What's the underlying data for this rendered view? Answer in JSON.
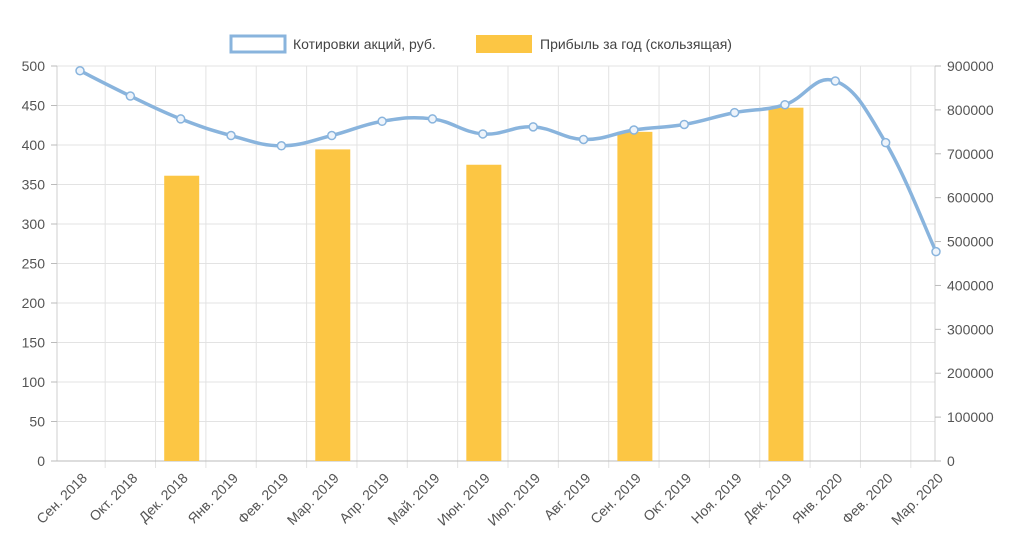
{
  "chart_data": {
    "type": "bar",
    "categories": [
      "Сен. 2018",
      "Окт. 2018",
      "Дек. 2018",
      "Янв. 2019",
      "Фев. 2019",
      "Мар. 2019",
      "Апр. 2019",
      "Май. 2019",
      "Июн. 2019",
      "Июл. 2019",
      "Авг. 2019",
      "Сен. 2019",
      "Окт. 2019",
      "Ноя. 2019",
      "Дек. 2019",
      "Янв. 2020",
      "Фев. 2020",
      "Мар. 2020"
    ],
    "series": [
      {
        "name": "Котировки акций, руб.",
        "type": "line",
        "axis": "left",
        "color": "#89b4dd",
        "values": [
          494,
          462,
          433,
          412,
          399,
          412,
          430,
          433,
          414,
          423,
          407,
          419,
          426,
          441,
          451,
          481,
          403,
          265
        ]
      },
      {
        "name": "Прибыль за год (скользящая)",
        "type": "bar",
        "axis": "right",
        "color": "#fcc644",
        "values": [
          null,
          null,
          650000,
          null,
          null,
          710000,
          null,
          null,
          675000,
          null,
          null,
          750000,
          null,
          null,
          805000,
          null,
          null,
          null
        ]
      }
    ],
    "left_axis": {
      "ylim": [
        0,
        500
      ],
      "ticks": [
        "0",
        "50",
        "100",
        "150",
        "200",
        "250",
        "300",
        "350",
        "400",
        "450",
        "500"
      ]
    },
    "right_axis": {
      "ylim": [
        0,
        900000
      ],
      "ticks": [
        "0",
        "100000",
        "200000",
        "300000",
        "400000",
        "500000",
        "600000",
        "700000",
        "800000",
        "900000"
      ]
    },
    "grid": true,
    "legend_position": "top-center"
  }
}
